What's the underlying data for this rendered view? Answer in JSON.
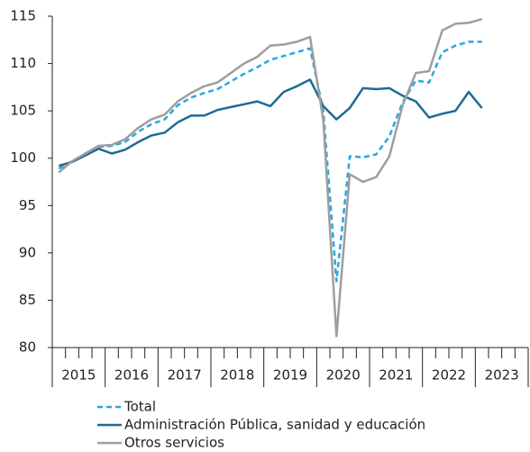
{
  "chart_data": {
    "type": "line",
    "categories": [
      "2015",
      null,
      null,
      null,
      "2016",
      null,
      null,
      null,
      "2017",
      null,
      null,
      null,
      "2018",
      null,
      null,
      null,
      "2019",
      null,
      null,
      null,
      "2020",
      null,
      null,
      null,
      "2021",
      null,
      null,
      null,
      "2022",
      null,
      null,
      null,
      "2023"
    ],
    "series": [
      {
        "name": "Total",
        "color": "#29a8e0",
        "dashed": true,
        "values": [
          98.9,
          99.7,
          100.5,
          101.2,
          101.3,
          101.7,
          102.8,
          103.6,
          104.1,
          105.6,
          106.4,
          106.9,
          107.3,
          108.1,
          108.9,
          109.6,
          110.4,
          110.8,
          111.2,
          111.6,
          105.0,
          87.0,
          100.2,
          100.1,
          100.4,
          102.3,
          105.9,
          108.2,
          108.0,
          111.2,
          111.9,
          112.3,
          112.3
        ]
      },
      {
        "name": "Administración Pública, sanidad y educación",
        "color": "#1f6a96",
        "dashed": false,
        "values": [
          99.2,
          99.6,
          100.3,
          101.0,
          100.5,
          100.9,
          101.7,
          102.4,
          102.7,
          103.8,
          104.5,
          104.5,
          105.1,
          105.4,
          105.7,
          106.0,
          105.5,
          107.0,
          107.6,
          108.3,
          105.5,
          104.1,
          105.3,
          107.4,
          107.3,
          107.4,
          106.6,
          106.0,
          104.3,
          104.7,
          105.0,
          107.0,
          105.3
        ]
      },
      {
        "name": "Otros servicios",
        "color": "#9e9e9e",
        "dashed": false,
        "values": [
          98.5,
          99.7,
          100.5,
          101.3,
          101.4,
          102.0,
          103.2,
          104.1,
          104.6,
          106.0,
          106.9,
          107.6,
          108.0,
          109.0,
          110.0,
          110.7,
          111.9,
          112.0,
          112.3,
          112.8,
          104.0,
          81.2,
          98.3,
          97.5,
          98.0,
          100.2,
          105.6,
          109.0,
          109.2,
          113.5,
          114.2,
          114.3,
          114.7
        ]
      }
    ],
    "ylim": [
      80,
      115
    ],
    "yticks": [
      80,
      85,
      90,
      95,
      100,
      105,
      110,
      115
    ]
  }
}
